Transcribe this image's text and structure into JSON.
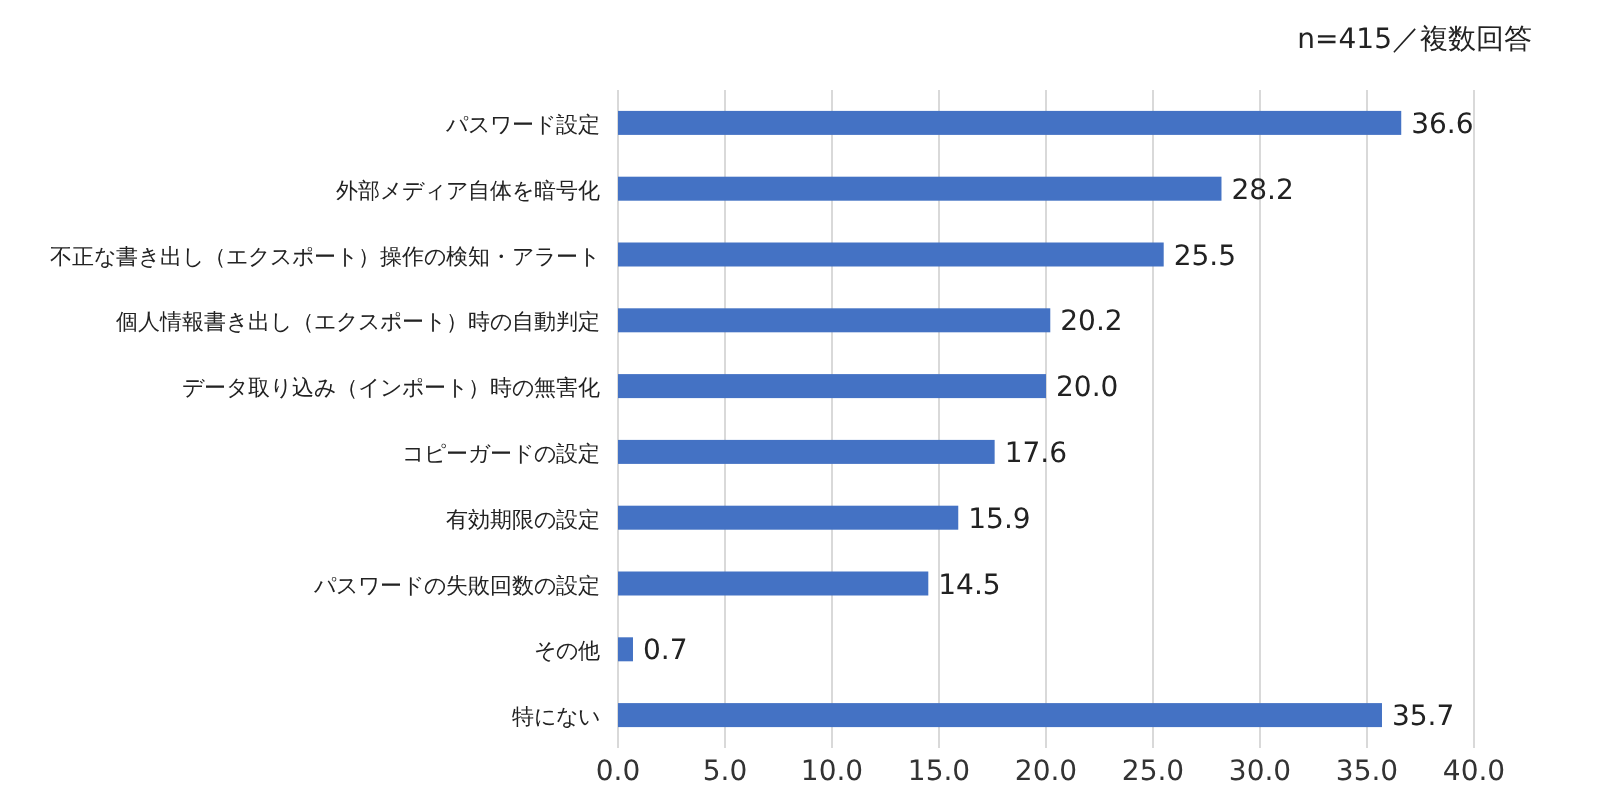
{
  "chart_data": {
    "type": "bar",
    "orientation": "horizontal",
    "annotations": [
      "n=415／複数回答"
    ],
    "categories": [
      "パスワード設定",
      "外部メディア自体を暗号化",
      "不正な書き出し（エクスポート）操作の検知・アラート",
      "個人情報書き出し（エクスポート）時の自動判定",
      "データ取り込み（インポート）時の無害化",
      "コピーガードの設定",
      "有効期限の設定",
      "パスワードの失敗回数の設定",
      "その他",
      "特にない"
    ],
    "values": [
      36.6,
      28.2,
      25.5,
      20.2,
      20.0,
      17.6,
      15.9,
      14.5,
      0.7,
      35.7
    ],
    "value_labels": [
      "36.6",
      "28.2",
      "25.5",
      "20.2",
      "20.0",
      "17.6",
      "15.9",
      "14.5",
      "0.7",
      "35.7"
    ],
    "color": "#4472c4",
    "grid": "x",
    "xlim": [
      0,
      40
    ],
    "xticks": [
      {
        "value": 0,
        "label": "0.0"
      },
      {
        "value": 5,
        "label": "5.0"
      },
      {
        "value": 10,
        "label": "10.0"
      },
      {
        "value": 15,
        "label": "15.0"
      },
      {
        "value": 20,
        "label": "20.0"
      },
      {
        "value": 25,
        "label": "25.0"
      },
      {
        "value": 30,
        "label": "30.0"
      },
      {
        "value": 35,
        "label": "35.0"
      },
      {
        "value": 40,
        "label": "40.0"
      }
    ]
  }
}
